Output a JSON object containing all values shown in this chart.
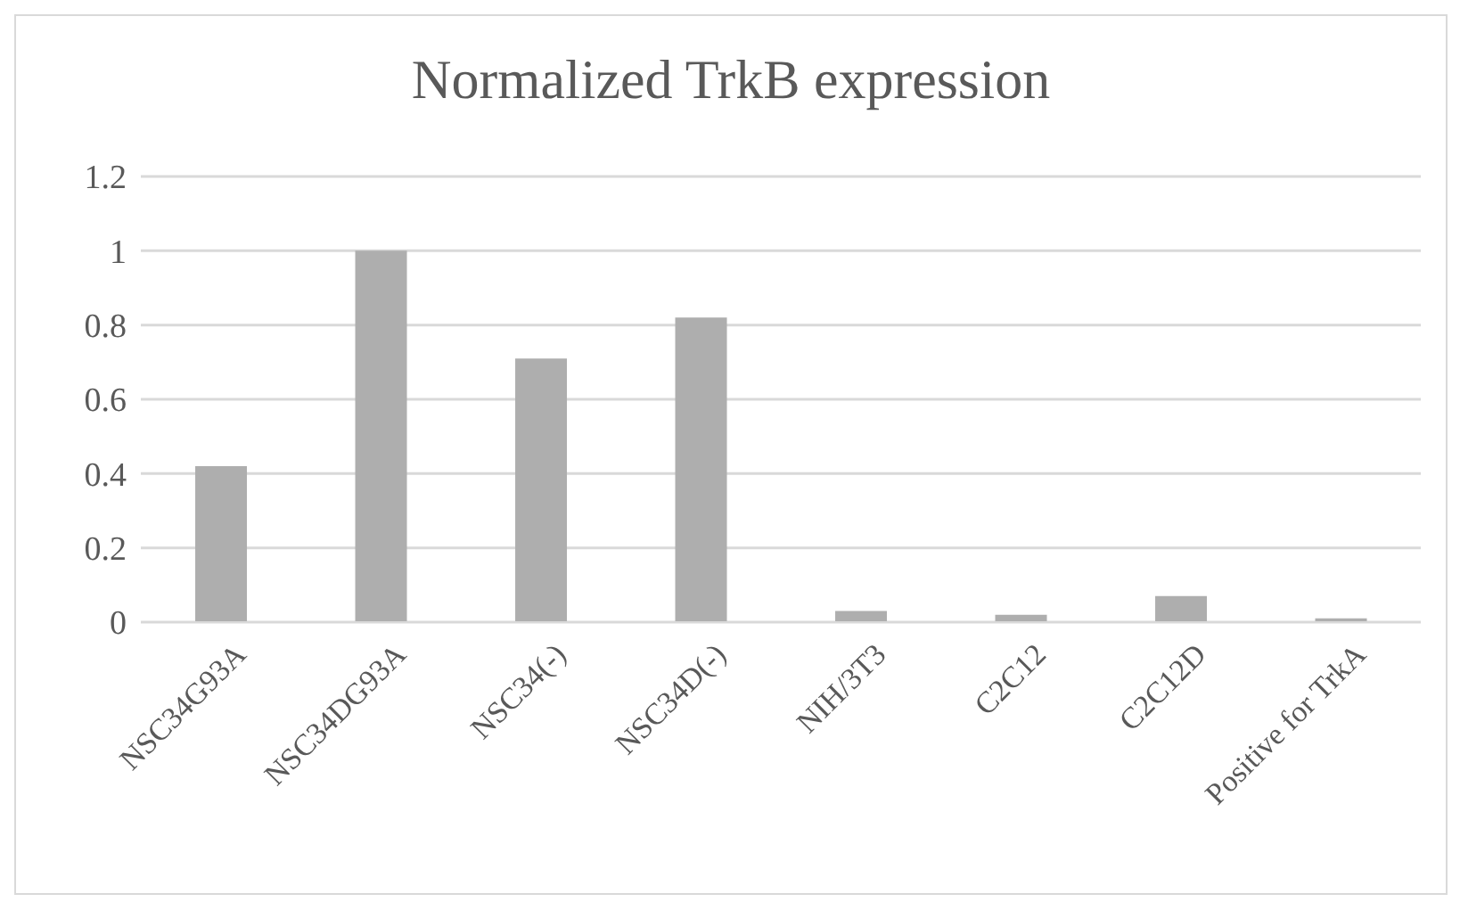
{
  "chart_data": {
    "type": "bar",
    "title": "Normalized TrkB expression",
    "categories": [
      "NSC34G93A",
      "NSC34DG93A",
      "NSC34(-)",
      "NSC34D(-)",
      "NIH/3T3",
      "C2C12",
      "C2C12D",
      "Positive for TrkA"
    ],
    "values": [
      0.42,
      1,
      0.71,
      0.82,
      0.03,
      0.02,
      0.07,
      0.01
    ],
    "color": "#aeaeae",
    "ylim": [
      0,
      1.2
    ],
    "yticks": [
      0,
      0.2,
      0.4,
      0.6,
      0.8,
      1,
      1.2
    ],
    "grid": "y"
  }
}
